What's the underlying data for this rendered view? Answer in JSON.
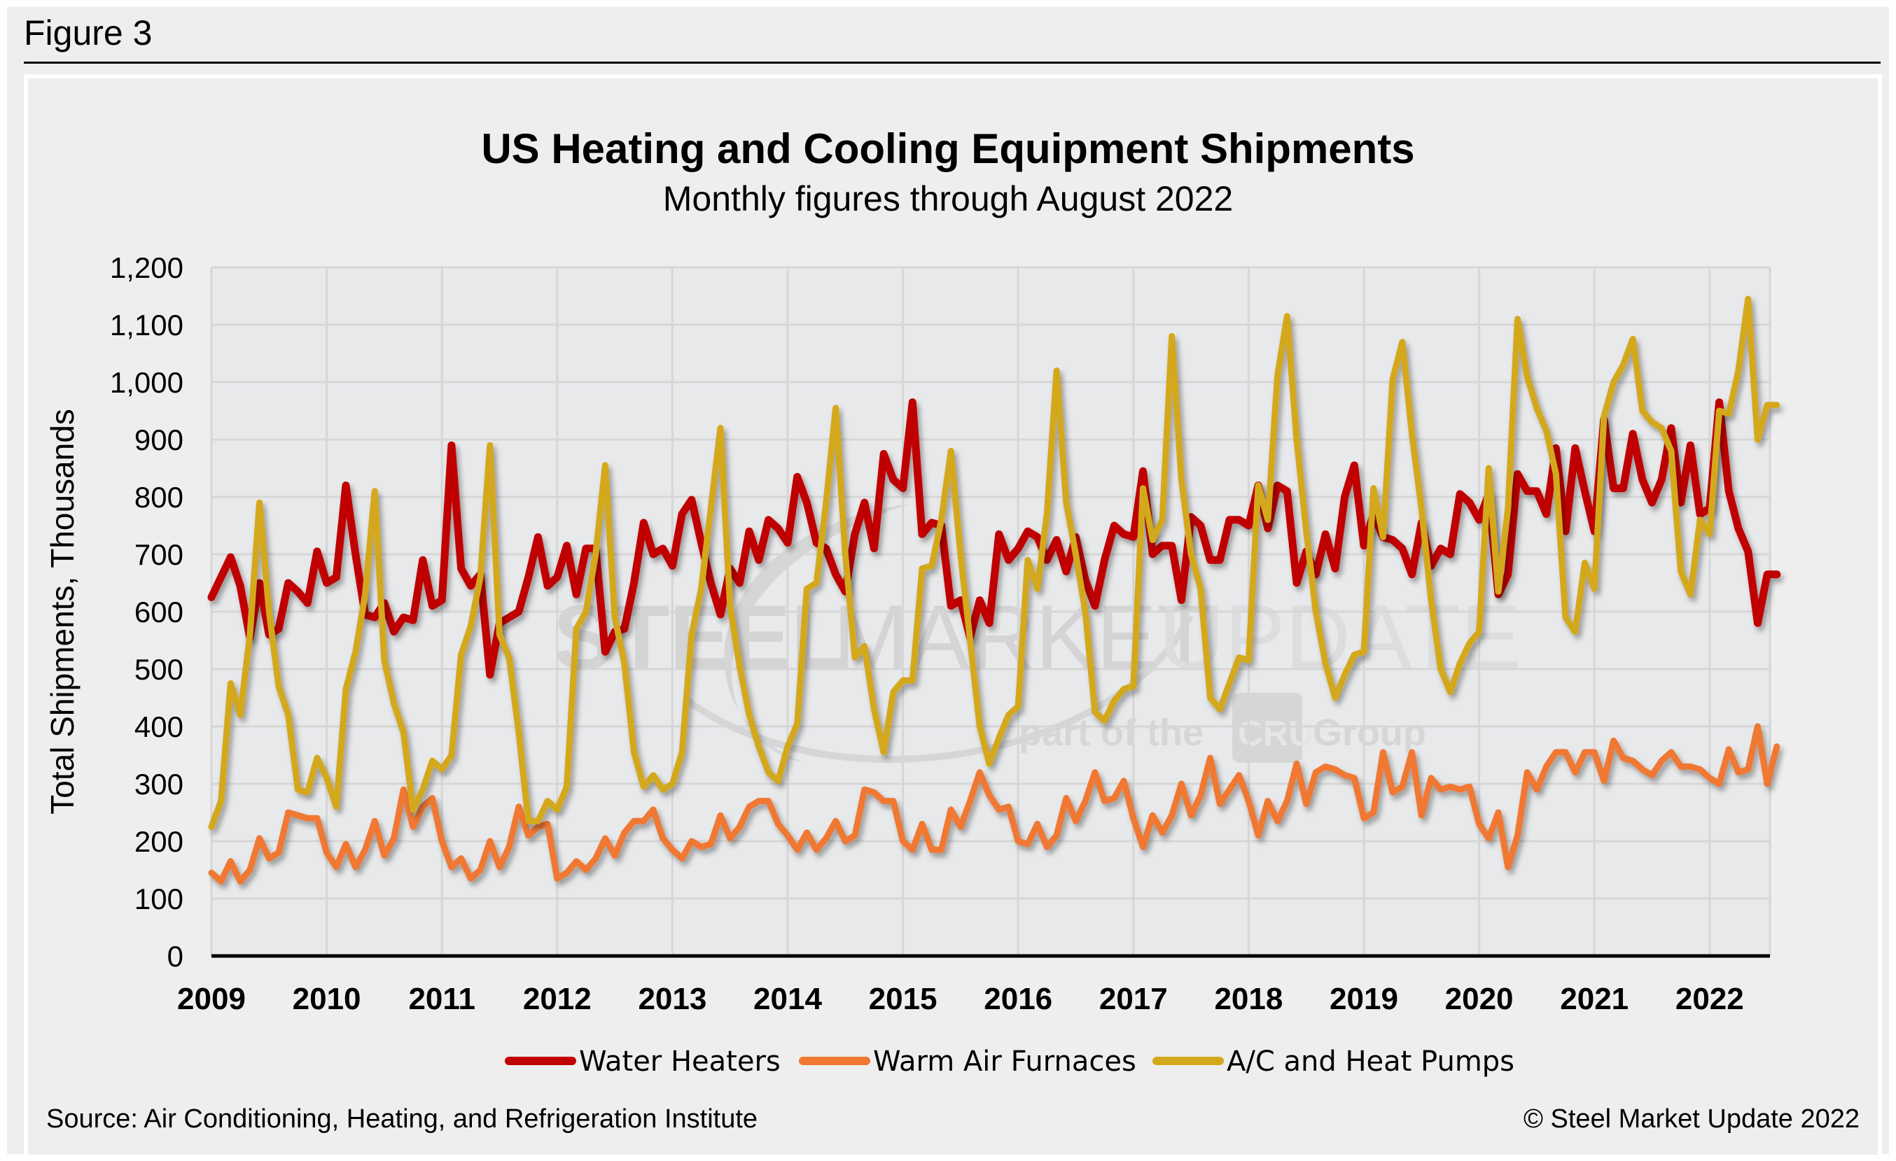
{
  "figure_label": "Figure 3",
  "source": "Source: Air Conditioning, Heating, and Refrigeration Institute",
  "copyright": "© Steel Market Update 2022",
  "watermark": {
    "line1_bold": "STEEL",
    "line1_mid": "MARKET",
    "line1_light": "UPDATE",
    "line2_pre": "part of the",
    "line2_logo": "CRU",
    "line2_post": "Group"
  },
  "chart_data": {
    "type": "line",
    "title": "US Heating and Cooling Equipment Shipments",
    "subtitle": "Monthly figures through August 2022",
    "xlabel": "",
    "ylabel": "Total Shipments, Thousands",
    "ylim": [
      0,
      1200
    ],
    "y_ticks": [
      0,
      100,
      200,
      300,
      400,
      500,
      600,
      700,
      800,
      900,
      1000,
      1100,
      1200
    ],
    "y_tick_labels": [
      "0",
      "100",
      "200",
      "300",
      "400",
      "500",
      "600",
      "700",
      "800",
      "900",
      "1,000",
      "1,100",
      "1,200"
    ],
    "x_start": "2009-01",
    "x_end": "2022-08",
    "x_tick_labels": [
      "2009",
      "2010",
      "2011",
      "2012",
      "2013",
      "2014",
      "2015",
      "2016",
      "2017",
      "2018",
      "2019",
      "2020",
      "2021",
      "2022"
    ],
    "grid": true,
    "legend_position": "bottom",
    "series": [
      {
        "name": "Water Heaters",
        "color": "#c00000",
        "values": [
          625,
          660,
          695,
          645,
          555,
          650,
          560,
          570,
          650,
          635,
          615,
          705,
          650,
          660,
          820,
          700,
          595,
          590,
          615,
          565,
          590,
          585,
          690,
          610,
          620,
          890,
          675,
          645,
          665,
          490,
          580,
          590,
          600,
          660,
          730,
          645,
          660,
          715,
          630,
          710,
          710,
          530,
          565,
          570,
          650,
          755,
          700,
          710,
          680,
          770,
          795,
          720,
          650,
          595,
          675,
          650,
          740,
          690,
          760,
          745,
          720,
          835,
          790,
          720,
          710,
          665,
          635,
          735,
          790,
          710,
          875,
          830,
          815,
          965,
          735,
          755,
          750,
          610,
          620,
          555,
          620,
          580,
          735,
          690,
          710,
          740,
          730,
          690,
          725,
          670,
          730,
          655,
          610,
          690,
          750,
          735,
          730,
          845,
          700,
          715,
          715,
          620,
          765,
          750,
          690,
          690,
          760,
          760,
          750,
          820,
          745,
          820,
          810,
          650,
          705,
          665,
          735,
          675,
          800,
          855,
          715,
          770,
          730,
          725,
          710,
          665,
          755,
          680,
          710,
          700,
          805,
          790,
          760,
          805,
          630,
          665,
          840,
          810,
          810,
          770,
          885,
          740,
          885,
          810,
          740,
          935,
          815,
          815,
          910,
          830,
          790,
          830,
          920,
          790,
          890,
          770,
          780,
          965,
          810,
          745,
          705,
          580,
          665,
          665
        ]
      },
      {
        "name": "Warm Air Furnaces",
        "color": "#f07830",
        "values": [
          145,
          130,
          165,
          130,
          150,
          205,
          170,
          180,
          250,
          245,
          240,
          240,
          180,
          155,
          195,
          155,
          185,
          235,
          175,
          205,
          290,
          225,
          260,
          275,
          200,
          155,
          170,
          135,
          150,
          200,
          155,
          190,
          260,
          210,
          225,
          230,
          135,
          145,
          165,
          150,
          170,
          205,
          175,
          215,
          235,
          235,
          255,
          205,
          185,
          170,
          200,
          190,
          195,
          245,
          205,
          225,
          260,
          270,
          270,
          230,
          210,
          185,
          215,
          185,
          205,
          235,
          200,
          210,
          290,
          285,
          270,
          270,
          200,
          185,
          230,
          185,
          185,
          255,
          225,
          270,
          320,
          280,
          255,
          260,
          200,
          195,
          230,
          190,
          210,
          275,
          235,
          270,
          320,
          270,
          275,
          305,
          240,
          190,
          245,
          215,
          245,
          300,
          245,
          280,
          345,
          265,
          290,
          315,
          270,
          210,
          270,
          235,
          270,
          335,
          265,
          320,
          330,
          325,
          315,
          310,
          240,
          250,
          355,
          285,
          295,
          355,
          245,
          310,
          290,
          295,
          290,
          295,
          230,
          205,
          250,
          155,
          210,
          320,
          290,
          330,
          355,
          355,
          320,
          355,
          355,
          305,
          375,
          345,
          340,
          325,
          315,
          340,
          355,
          330,
          330,
          325,
          310,
          300,
          360,
          320,
          325,
          400,
          300,
          365
        ]
      },
      {
        "name": "A/C and Heat Pumps",
        "color": "#d4a81c",
        "values": [
          225,
          270,
          475,
          420,
          560,
          790,
          600,
          470,
          420,
          290,
          285,
          345,
          310,
          260,
          465,
          530,
          630,
          810,
          515,
          440,
          390,
          255,
          290,
          340,
          325,
          350,
          525,
          575,
          660,
          890,
          560,
          520,
          390,
          235,
          235,
          270,
          255,
          295,
          570,
          600,
          700,
          855,
          590,
          510,
          355,
          295,
          315,
          290,
          300,
          355,
          560,
          640,
          780,
          920,
          610,
          505,
          420,
          365,
          320,
          305,
          365,
          405,
          640,
          650,
          790,
          955,
          700,
          520,
          540,
          430,
          355,
          460,
          480,
          480,
          675,
          680,
          760,
          880,
          700,
          550,
          400,
          335,
          380,
          420,
          435,
          690,
          640,
          770,
          1020,
          790,
          700,
          600,
          425,
          410,
          445,
          465,
          470,
          815,
          725,
          760,
          1080,
          830,
          700,
          640,
          450,
          430,
          475,
          520,
          515,
          820,
          760,
          1010,
          1115,
          900,
          740,
          600,
          510,
          450,
          490,
          525,
          530,
          815,
          730,
          1005,
          1070,
          910,
          780,
          620,
          500,
          460,
          510,
          545,
          565,
          850,
          635,
          780,
          1110,
          1010,
          955,
          915,
          840,
          590,
          565,
          685,
          640,
          940,
          1000,
          1030,
          1075,
          950,
          930,
          920,
          880,
          670,
          630,
          760,
          735,
          950,
          945,
          1020,
          1145,
          900,
          960,
          960
        ]
      }
    ]
  }
}
